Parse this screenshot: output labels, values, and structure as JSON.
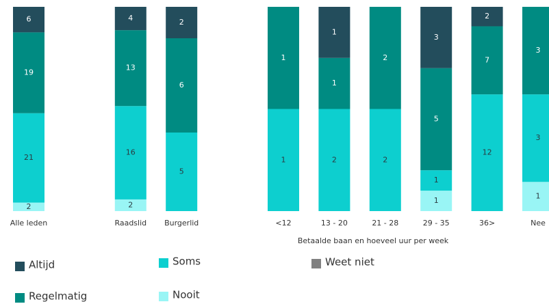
{
  "chart_data": {
    "type": "bar",
    "stacked": true,
    "normalized": true,
    "categories": [
      "Alle leden",
      null,
      "Raadslid",
      "Burgerlid",
      null,
      "<12",
      "13 - 20",
      "21 - 28",
      "29 - 35",
      "36>",
      "Nee"
    ],
    "group_label": "Betaalde baan en hoeveel uur per week",
    "series": [
      {
        "name": "Nooit",
        "color": "#99f5f5",
        "values": [
          2,
          null,
          2,
          0,
          null,
          0,
          0,
          0,
          1,
          0,
          1
        ]
      },
      {
        "name": "Soms",
        "color": "#0dcfcf",
        "values": [
          21,
          null,
          16,
          5,
          null,
          1,
          2,
          2,
          1,
          12,
          3
        ]
      },
      {
        "name": "Regelmatig",
        "color": "#008b82",
        "values": [
          19,
          null,
          13,
          6,
          null,
          1,
          1,
          2,
          5,
          7,
          3
        ]
      },
      {
        "name": "Altijd",
        "color": "#234d5c",
        "values": [
          6,
          null,
          4,
          2,
          null,
          0,
          1,
          0,
          3,
          2,
          0
        ]
      },
      {
        "name": "Weet niet",
        "color": "#808080",
        "values": [
          0,
          null,
          0,
          0,
          null,
          0,
          0,
          0,
          0,
          0,
          0
        ]
      }
    ]
  }
}
